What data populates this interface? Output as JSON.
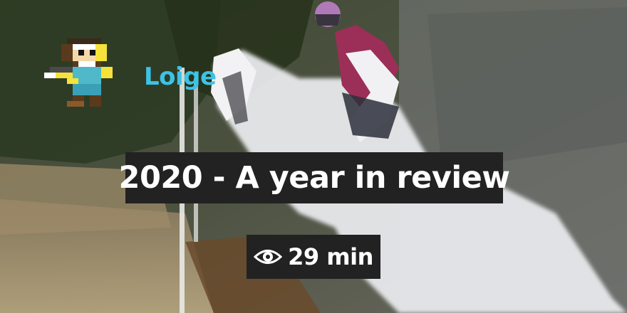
{
  "card": {
    "brand": "Loige",
    "title": "2020 - A year in review",
    "reading_time": "29 min",
    "reading_icon": "eye-icon",
    "logo_icon": "pixel-art-avatar-icon",
    "background": "horse-show-jumping-photo"
  },
  "colors": {
    "brand": "#3cc3e6",
    "label_bg": "#222222",
    "label_text": "#ffffff"
  }
}
